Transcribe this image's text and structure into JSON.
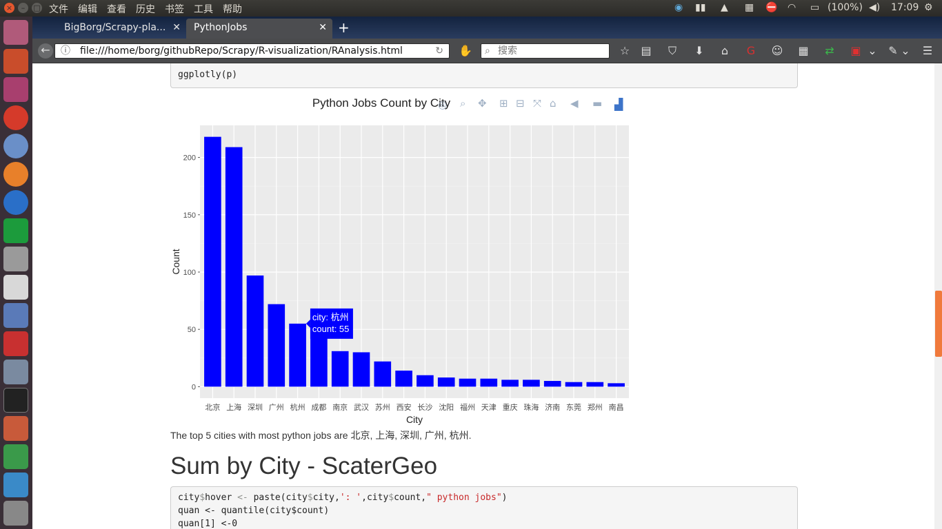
{
  "system": {
    "menus": [
      "文件",
      "编辑",
      "查看",
      "历史",
      "书签",
      "工具",
      "帮助"
    ],
    "battery": "(100%)",
    "clock": "17:09"
  },
  "tabs": [
    {
      "label": "BigBorg/Scrapy-pla...",
      "active": false
    },
    {
      "label": "PythonJobs",
      "active": true
    }
  ],
  "nav": {
    "url": "file:///home/borg/githubRepo/Scrapy/R-visualization/RAnalysis.html",
    "search_placeholder": "搜索"
  },
  "code_top": "ggplotly(p)",
  "chart_data": {
    "type": "bar",
    "title": "Python Jobs Count by City",
    "xlabel": "City",
    "ylabel": "Count",
    "categories": [
      "北京",
      "上海",
      "深圳",
      "广州",
      "杭州",
      "成都",
      "南京",
      "武汉",
      "苏州",
      "西安",
      "长沙",
      "沈阳",
      "福州",
      "天津",
      "重庆",
      "珠海",
      "济南",
      "东莞",
      "郑州",
      "南昌"
    ],
    "values": [
      218,
      209,
      97,
      72,
      55,
      44,
      31,
      30,
      22,
      14,
      10,
      8,
      7,
      7,
      6,
      6,
      5,
      4,
      4,
      3
    ],
    "yticks": [
      0,
      50,
      100,
      150,
      200
    ],
    "ylim": [
      -10,
      228
    ],
    "bar_color": "#0000ff",
    "grid": true,
    "tooltip": {
      "line1": "city: 杭州",
      "line2": "count: 55"
    }
  },
  "paragraph": "The top 5 cities with most python jobs are 北京, 上海, 深圳, 广州, 杭州.",
  "heading": "Sum by City - ScaterGeo",
  "code_bottom": {
    "line1_a": "city",
    "line1_b": "$",
    "line1_c": "hover ",
    "line1_d": "<-",
    "line1_e": " paste(city",
    "line1_f": "$",
    "line1_g": "city,",
    "line1_h": "': '",
    "line1_i": ",city",
    "line1_j": "$",
    "line1_k": "count,",
    "line1_l": "\" python jobs\"",
    "line1_m": ")",
    "line2": "quan <- quantile(city$count)",
    "line3": "quan[1] <-0"
  }
}
